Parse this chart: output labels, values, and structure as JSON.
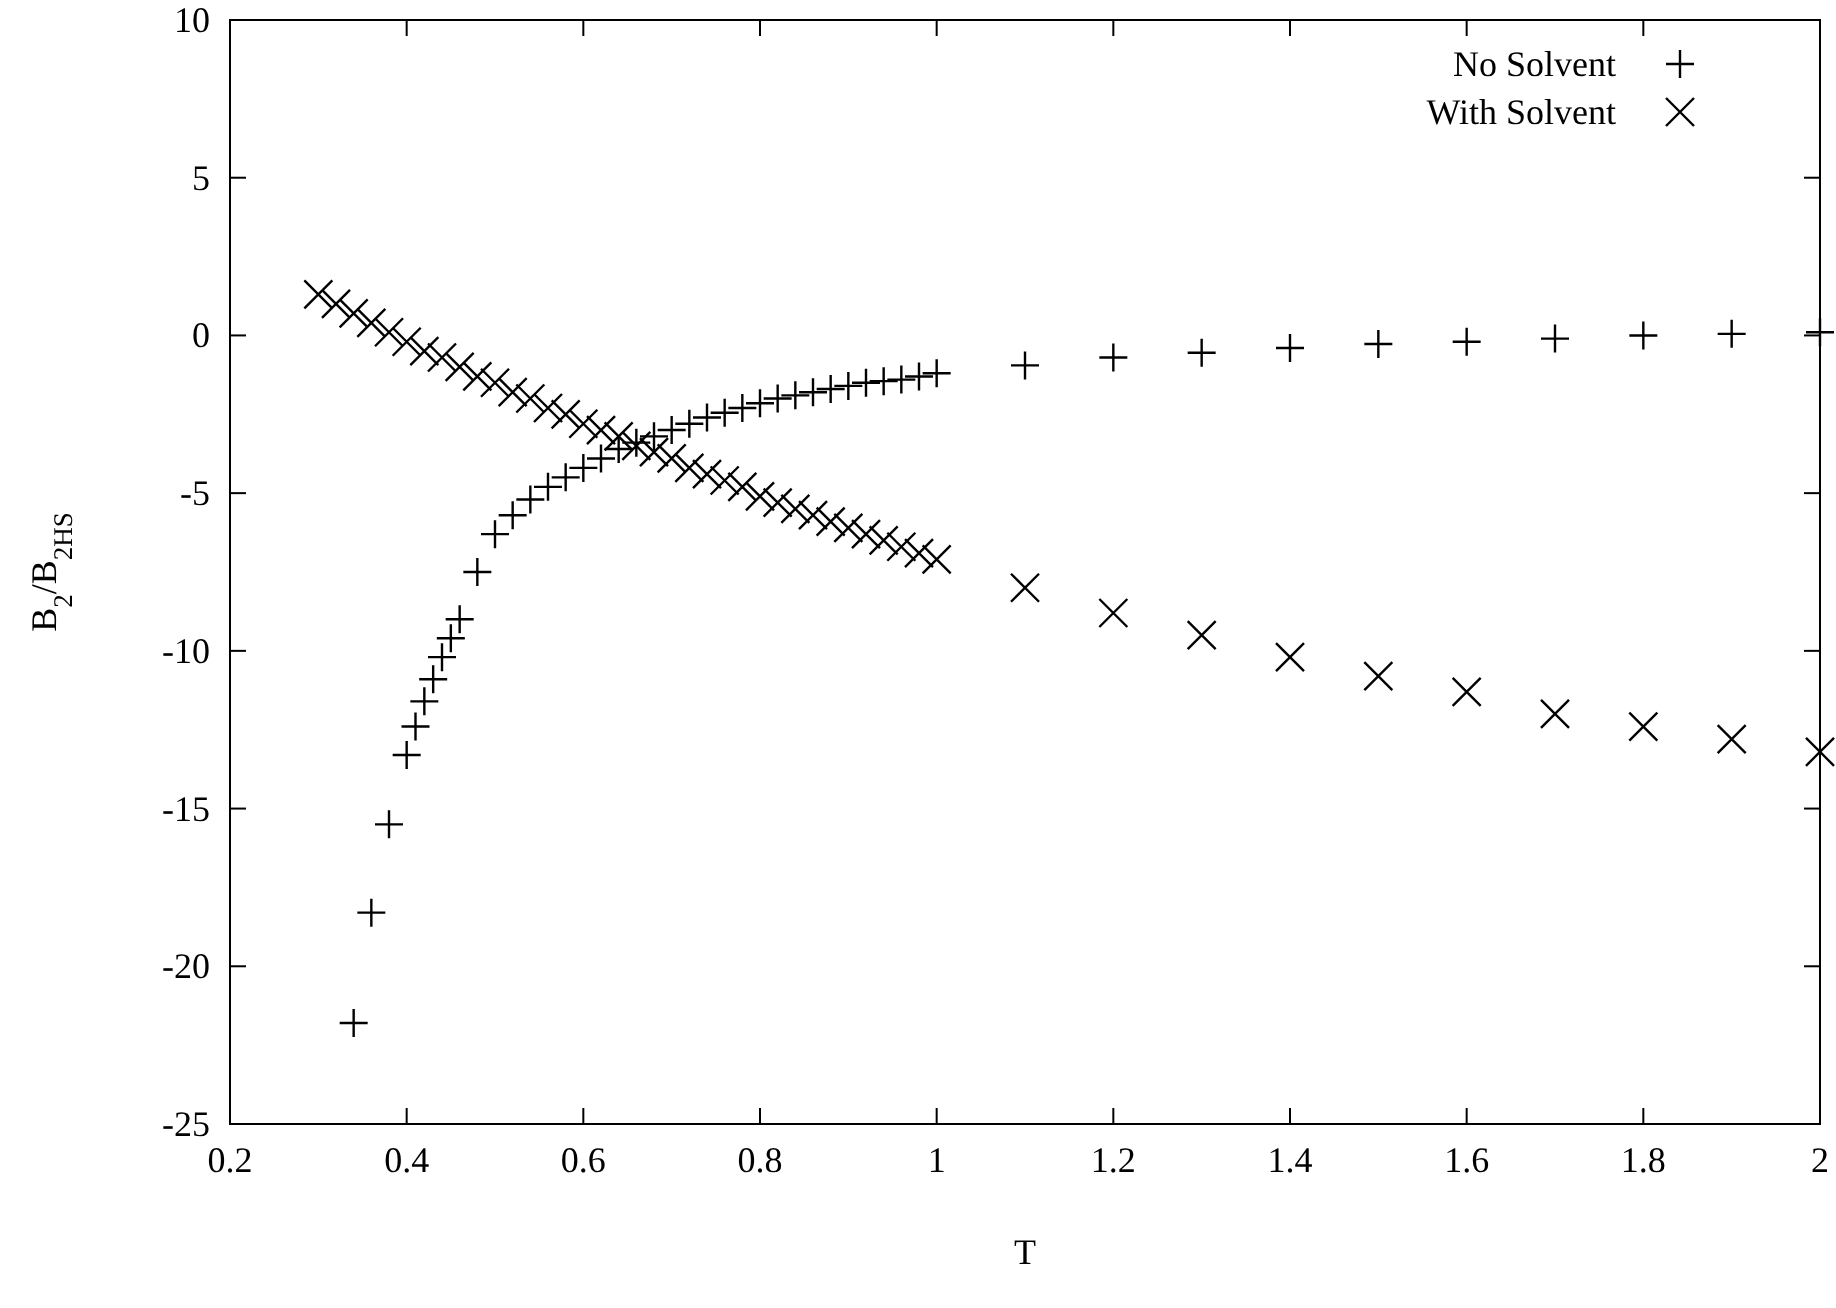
{
  "chart_data": {
    "type": "scatter",
    "xlabel": "T",
    "ylabel": "B$_{2}$/B$_{2HS}$",
    "xlim": [
      0.2,
      2
    ],
    "ylim": [
      -25,
      10
    ],
    "xticks": [
      0.2,
      0.4,
      0.6,
      0.8,
      1,
      1.2,
      1.4,
      1.6,
      1.8,
      2
    ],
    "yticks": [
      -25,
      -20,
      -15,
      -10,
      -5,
      0,
      5,
      10
    ],
    "grid": false,
    "legend": "top right",
    "series": [
      {
        "name": "No Solvent",
        "color": "#000000",
        "marker": "plus",
        "x": [
          0.34,
          0.36,
          0.38,
          0.4,
          0.41,
          0.42,
          0.43,
          0.44,
          0.45,
          0.46,
          0.48,
          0.5,
          0.52,
          0.54,
          0.56,
          0.58,
          0.6,
          0.62,
          0.64,
          0.66,
          0.68,
          0.7,
          0.72,
          0.74,
          0.76,
          0.78,
          0.8,
          0.82,
          0.84,
          0.86,
          0.88,
          0.9,
          0.92,
          0.94,
          0.96,
          0.98,
          1,
          1.1,
          1.2,
          1.3,
          1.4,
          1.5,
          1.6,
          1.7,
          1.8,
          1.9,
          2
        ],
        "values": [
          -21.8,
          -18.3,
          -15.5,
          -13.3,
          -12.4,
          -11.6,
          -10.9,
          -10.2,
          -9.6,
          -9.0,
          -7.5,
          -6.3,
          -5.7,
          -5.2,
          -4.8,
          -4.5,
          -4.2,
          -3.9,
          -3.6,
          -3.4,
          -3.2,
          -3.0,
          -2.8,
          -2.6,
          -2.45,
          -2.3,
          -2.15,
          -2.0,
          -1.9,
          -1.8,
          -1.7,
          -1.6,
          -1.5,
          -1.45,
          -1.4,
          -1.3,
          -1.2,
          -0.95,
          -0.7,
          -0.55,
          -0.4,
          -0.27,
          -0.2,
          -0.1,
          0,
          0.05,
          0.1
        ]
      },
      {
        "name": "With Solvent",
        "color": "#000000",
        "marker": "cross",
        "x": [
          0.3,
          0.32,
          0.34,
          0.36,
          0.38,
          0.4,
          0.42,
          0.44,
          0.46,
          0.48,
          0.5,
          0.52,
          0.54,
          0.56,
          0.58,
          0.6,
          0.62,
          0.64,
          0.66,
          0.68,
          0.7,
          0.72,
          0.74,
          0.76,
          0.78,
          0.8,
          0.82,
          0.84,
          0.86,
          0.88,
          0.9,
          0.92,
          0.94,
          0.96,
          0.98,
          1,
          1.1,
          1.2,
          1.3,
          1.4,
          1.5,
          1.6,
          1.7,
          1.8,
          1.9,
          2
        ],
        "values": [
          1.3,
          1.0,
          0.7,
          0.4,
          0.1,
          -0.2,
          -0.5,
          -0.7,
          -1.0,
          -1.3,
          -1.5,
          -1.8,
          -2.0,
          -2.3,
          -2.5,
          -2.8,
          -3.0,
          -3.2,
          -3.5,
          -3.7,
          -3.9,
          -4.2,
          -4.4,
          -4.6,
          -4.8,
          -5.1,
          -5.3,
          -5.5,
          -5.7,
          -5.9,
          -6.1,
          -6.3,
          -6.5,
          -6.7,
          -6.9,
          -7.1,
          -8.0,
          -8.8,
          -9.5,
          -10.2,
          -10.8,
          -11.3,
          -12.0,
          -12.4,
          -12.8,
          -13.2
        ]
      }
    ]
  }
}
